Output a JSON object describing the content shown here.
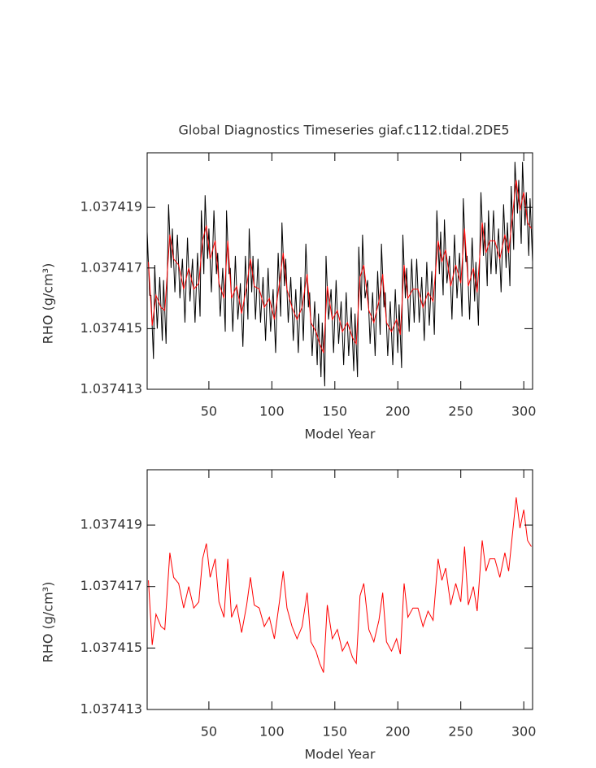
{
  "chart_data": [
    {
      "type": "line",
      "title": "Global Diagnostics Timeseries giaf.c112.tidal.2DE5",
      "xlabel": "Model Year",
      "ylabel": "RHO (g/cm³)",
      "xlim": [
        1,
        307
      ],
      "ylim": [
        1.037413,
        1.0374208
      ],
      "xticks": [
        50,
        100,
        150,
        200,
        250,
        300
      ],
      "yticks": [
        1.037413,
        1.037415,
        1.037417,
        1.037419
      ],
      "series": [
        {
          "color": "#000000",
          "x": [
            1,
            3,
            4,
            6,
            7,
            9,
            11,
            13,
            14,
            16,
            18,
            20,
            21,
            23,
            25,
            27,
            29,
            31,
            33,
            35,
            37,
            39,
            41,
            43,
            44,
            46,
            47,
            49,
            50,
            52,
            54,
            56,
            57,
            59,
            61,
            63,
            64,
            66,
            67,
            69,
            71,
            73,
            75,
            77,
            79,
            81,
            82,
            84,
            85,
            87,
            89,
            91,
            93,
            95,
            97,
            99,
            101,
            103,
            105,
            107,
            108,
            110,
            111,
            113,
            115,
            117,
            119,
            121,
            123,
            125,
            127,
            129,
            130,
            132,
            134,
            136,
            137,
            139,
            140,
            142,
            143,
            145,
            147,
            149,
            151,
            153,
            155,
            157,
            159,
            161,
            163,
            165,
            166,
            168,
            169,
            171,
            172,
            174,
            176,
            178,
            180,
            182,
            184,
            186,
            187,
            189,
            190,
            192,
            194,
            196,
            198,
            200,
            201,
            203,
            204,
            206,
            207,
            209,
            211,
            213,
            215,
            217,
            219,
            221,
            223,
            225,
            227,
            229,
            231,
            233,
            234,
            236,
            237,
            239,
            241,
            243,
            245,
            247,
            249,
            251,
            252,
            254,
            255,
            257,
            259,
            261,
            262,
            264,
            266,
            268,
            269,
            271,
            272,
            274,
            276,
            278,
            280,
            282,
            284,
            286,
            287,
            289,
            290,
            292,
            293,
            295,
            296,
            298,
            299,
            301,
            302,
            304,
            305,
            307
          ],
          "values": [
            1.0374182,
            1.0374161,
            1.0374161,
            1.037414,
            1.0374171,
            1.037415,
            1.0374167,
            1.0374146,
            1.0374166,
            1.0374145,
            1.0374191,
            1.037417,
            1.0374183,
            1.0374162,
            1.0374181,
            1.037416,
            1.0374173,
            1.0374152,
            1.037418,
            1.0374159,
            1.0374173,
            1.0374152,
            1.0374175,
            1.0374154,
            1.0374189,
            1.0374168,
            1.0374194,
            1.0374173,
            1.0374183,
            1.0374162,
            1.0374189,
            1.0374168,
            1.0374175,
            1.0374154,
            1.037417,
            1.0374149,
            1.0374189,
            1.0374168,
            1.037417,
            1.0374149,
            1.0374174,
            1.0374153,
            1.0374165,
            1.0374144,
            1.0374174,
            1.0374153,
            1.0374183,
            1.0374162,
            1.0374174,
            1.0374153,
            1.0374173,
            1.0374152,
            1.0374167,
            1.0374146,
            1.037417,
            1.0374149,
            1.0374163,
            1.0374142,
            1.0374175,
            1.0374154,
            1.0374185,
            1.0374164,
            1.0374173,
            1.0374152,
            1.0374167,
            1.0374146,
            1.0374163,
            1.0374142,
            1.0374167,
            1.0374146,
            1.0374178,
            1.0374157,
            1.0374162,
            1.0374141,
            1.0374159,
            1.0374138,
            1.0374155,
            1.0374134,
            1.0374152,
            1.0374131,
            1.0374174,
            1.0374153,
            1.0374163,
            1.0374142,
            1.0374166,
            1.0374145,
            1.0374159,
            1.0374138,
            1.0374162,
            1.0374141,
            1.0374157,
            1.0374136,
            1.0374155,
            1.0374134,
            1.0374177,
            1.0374156,
            1.0374181,
            1.037416,
            1.0374166,
            1.0374145,
            1.0374162,
            1.0374141,
            1.0374169,
            1.0374148,
            1.0374178,
            1.0374157,
            1.0374162,
            1.0374141,
            1.0374159,
            1.0374138,
            1.0374163,
            1.0374142,
            1.0374158,
            1.0374137,
            1.0374181,
            1.037416,
            1.037417,
            1.0374149,
            1.0374173,
            1.0374152,
            1.0374173,
            1.0374152,
            1.0374167,
            1.0374146,
            1.0374172,
            1.0374151,
            1.0374169,
            1.0374148,
            1.0374189,
            1.0374168,
            1.0374182,
            1.0374161,
            1.0374186,
            1.0374165,
            1.0374174,
            1.0374153,
            1.0374181,
            1.037416,
            1.0374175,
            1.0374154,
            1.0374193,
            1.0374172,
            1.0374174,
            1.0374153,
            1.037418,
            1.0374159,
            1.0374172,
            1.0374151,
            1.0374195,
            1.0374174,
            1.0374185,
            1.0374164,
            1.0374189,
            1.0374168,
            1.0374189,
            1.0374168,
            1.0374183,
            1.0374162,
            1.0374191,
            1.037417,
            1.0374185,
            1.0374164,
            1.0374197,
            1.0374176,
            1.0374205,
            1.0374188,
            1.0374199,
            1.0374178,
            1.0374205,
            1.0374184,
            1.0374195,
            1.0374174,
            1.0374193,
            1.0374172
          ]
        },
        {
          "color": "#ff0000",
          "x": [
            2,
            5,
            8,
            12,
            15,
            19,
            22,
            26,
            30,
            34,
            38,
            42,
            45,
            48,
            51,
            55,
            58,
            62,
            65,
            68,
            72,
            76,
            80,
            83,
            86,
            90,
            94,
            98,
            102,
            106,
            109,
            112,
            116,
            120,
            124,
            128,
            131,
            135,
            138,
            141,
            144,
            148,
            152,
            156,
            160,
            164,
            167,
            170,
            173,
            177,
            181,
            185,
            188,
            191,
            195,
            199,
            202,
            205,
            208,
            212,
            216,
            220,
            224,
            228,
            232,
            235,
            238,
            242,
            246,
            250,
            253,
            256,
            260,
            263,
            267,
            270,
            273,
            277,
            281,
            285,
            288,
            291,
            294,
            297,
            300,
            303,
            306
          ],
          "values": [
            1.0374172,
            1.0374151,
            1.0374161,
            1.0374157,
            1.0374156,
            1.0374181,
            1.0374173,
            1.0374171,
            1.0374163,
            1.037417,
            1.0374163,
            1.0374165,
            1.0374179,
            1.0374184,
            1.0374173,
            1.0374179,
            1.0374165,
            1.037416,
            1.0374179,
            1.037416,
            1.0374164,
            1.0374155,
            1.0374164,
            1.0374173,
            1.0374164,
            1.0374163,
            1.0374157,
            1.037416,
            1.0374153,
            1.0374165,
            1.0374175,
            1.0374163,
            1.0374157,
            1.0374153,
            1.0374157,
            1.0374168,
            1.0374152,
            1.0374149,
            1.0374145,
            1.0374142,
            1.0374164,
            1.0374153,
            1.0374156,
            1.0374149,
            1.0374152,
            1.0374147,
            1.0374145,
            1.0374167,
            1.0374171,
            1.0374156,
            1.0374152,
            1.0374159,
            1.0374168,
            1.0374152,
            1.0374149,
            1.0374153,
            1.0374148,
            1.0374171,
            1.037416,
            1.0374163,
            1.0374163,
            1.0374157,
            1.0374162,
            1.0374159,
            1.0374179,
            1.0374172,
            1.0374176,
            1.0374164,
            1.0374171,
            1.0374165,
            1.0374183,
            1.0374164,
            1.037417,
            1.0374162,
            1.0374185,
            1.0374175,
            1.0374179,
            1.0374179,
            1.0374173,
            1.0374181,
            1.0374175,
            1.0374187,
            1.0374199,
            1.0374189,
            1.0374195,
            1.0374185,
            1.0374183
          ]
        }
      ]
    },
    {
      "type": "line",
      "xlabel": "Model Year",
      "ylabel": "RHO (g/cm³)",
      "xlim": [
        1,
        307
      ],
      "ylim": [
        1.037413,
        1.0374208
      ],
      "xticks": [
        50,
        100,
        150,
        200,
        250,
        300
      ],
      "yticks": [
        1.037413,
        1.037415,
        1.037417,
        1.037419
      ],
      "series": [
        {
          "color": "#ff0000",
          "x": [
            2,
            5,
            8,
            12,
            15,
            19,
            22,
            26,
            30,
            34,
            38,
            42,
            45,
            48,
            51,
            55,
            58,
            62,
            65,
            68,
            72,
            76,
            80,
            83,
            86,
            90,
            94,
            98,
            102,
            106,
            109,
            112,
            116,
            120,
            124,
            128,
            131,
            135,
            138,
            141,
            144,
            148,
            152,
            156,
            160,
            164,
            167,
            170,
            173,
            177,
            181,
            185,
            188,
            191,
            195,
            199,
            202,
            205,
            208,
            212,
            216,
            220,
            224,
            228,
            232,
            235,
            238,
            242,
            246,
            250,
            253,
            256,
            260,
            263,
            267,
            270,
            273,
            277,
            281,
            285,
            288,
            291,
            294,
            297,
            300,
            303,
            306
          ],
          "values": [
            1.0374172,
            1.0374151,
            1.0374161,
            1.0374157,
            1.0374156,
            1.0374181,
            1.0374173,
            1.0374171,
            1.0374163,
            1.037417,
            1.0374163,
            1.0374165,
            1.0374179,
            1.0374184,
            1.0374173,
            1.0374179,
            1.0374165,
            1.037416,
            1.0374179,
            1.037416,
            1.0374164,
            1.0374155,
            1.0374164,
            1.0374173,
            1.0374164,
            1.0374163,
            1.0374157,
            1.037416,
            1.0374153,
            1.0374165,
            1.0374175,
            1.0374163,
            1.0374157,
            1.0374153,
            1.0374157,
            1.0374168,
            1.0374152,
            1.0374149,
            1.0374145,
            1.0374142,
            1.0374164,
            1.0374153,
            1.0374156,
            1.0374149,
            1.0374152,
            1.0374147,
            1.0374145,
            1.0374167,
            1.0374171,
            1.0374156,
            1.0374152,
            1.0374159,
            1.0374168,
            1.0374152,
            1.0374149,
            1.0374153,
            1.0374148,
            1.0374171,
            1.037416,
            1.0374163,
            1.0374163,
            1.0374157,
            1.0374162,
            1.0374159,
            1.0374179,
            1.0374172,
            1.0374176,
            1.0374164,
            1.0374171,
            1.0374165,
            1.0374183,
            1.0374164,
            1.037417,
            1.0374162,
            1.0374185,
            1.0374175,
            1.0374179,
            1.0374179,
            1.0374173,
            1.0374181,
            1.0374175,
            1.0374187,
            1.0374199,
            1.0374189,
            1.0374195,
            1.0374185,
            1.0374183
          ]
        }
      ]
    }
  ]
}
